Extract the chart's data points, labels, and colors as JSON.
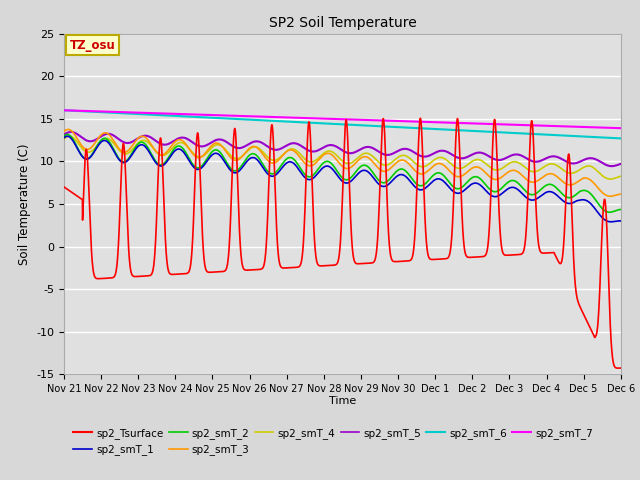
{
  "title": "SP2 Soil Temperature",
  "ylabel": "Soil Temperature (C)",
  "xlabel": "Time",
  "ylim": [
    -15,
    25
  ],
  "background_color": "#d8d8d8",
  "plot_bg_color": "#e0e0e0",
  "grid_color": "#ffffff",
  "annotation_text": "TZ_osu",
  "annotation_bg": "#ffffcc",
  "annotation_border": "#bbaa00",
  "series": {
    "sp2_Tsurface": {
      "color": "#ff0000",
      "lw": 1.2
    },
    "sp2_smT_1": {
      "color": "#0000cc",
      "lw": 1.2
    },
    "sp2_smT_2": {
      "color": "#00cc00",
      "lw": 1.2
    },
    "sp2_smT_3": {
      "color": "#ff9900",
      "lw": 1.2
    },
    "sp2_smT_4": {
      "color": "#cccc00",
      "lw": 1.2
    },
    "sp2_smT_5": {
      "color": "#9900cc",
      "lw": 1.5
    },
    "sp2_smT_6": {
      "color": "#00cccc",
      "lw": 1.5
    },
    "sp2_smT_7": {
      "color": "#ff00ff",
      "lw": 1.5
    }
  },
  "xtick_labels": [
    "Nov 21",
    "Nov 22",
    "Nov 23",
    "Nov 24",
    "Nov 25",
    "Nov 26",
    "Nov 27",
    "Nov 28",
    "Nov 29",
    "Nov 30",
    "Dec 1",
    "Dec 2",
    "Dec 3",
    "Dec 4",
    "Dec 5",
    "Dec 6"
  ],
  "yticks": [
    -15,
    -10,
    -5,
    0,
    5,
    10,
    15,
    20,
    25
  ],
  "figsize": [
    6.4,
    4.8
  ],
  "dpi": 100
}
